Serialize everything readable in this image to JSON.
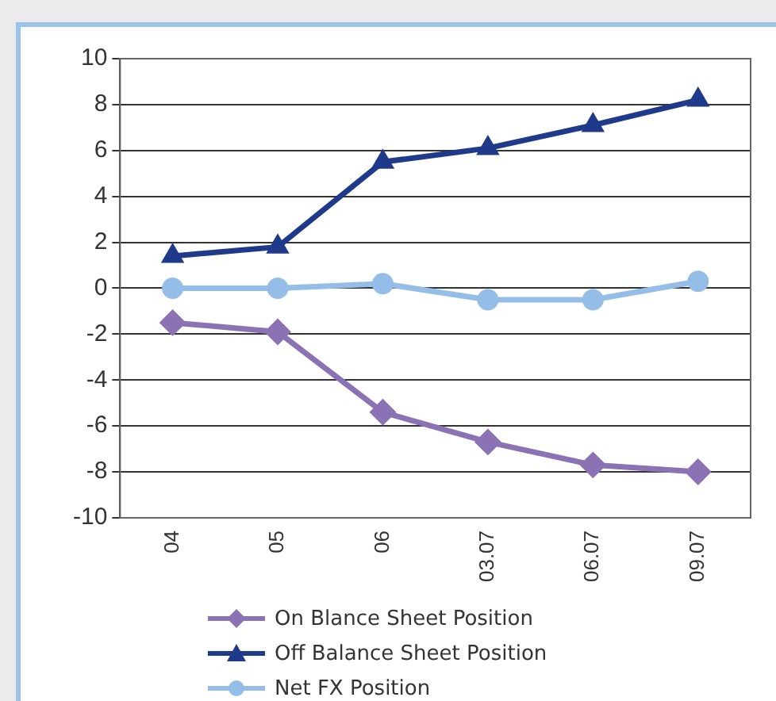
{
  "chart_data": {
    "type": "line",
    "categories": [
      "04",
      "05",
      "06",
      "03.07",
      "06.07",
      "09.07"
    ],
    "series": [
      {
        "name": "On Blance Sheet Position",
        "color": "#8a72b4",
        "marker": "diamond",
        "values": [
          -1.5,
          -1.9,
          -5.4,
          -6.7,
          -7.7,
          -8.0
        ]
      },
      {
        "name": "Off Balance Sheet Position",
        "color": "#1f3a8a",
        "marker": "triangle",
        "values": [
          1.4,
          1.8,
          5.5,
          6.1,
          7.1,
          8.2
        ]
      },
      {
        "name": "Net FX Position",
        "color": "#94bde8",
        "marker": "circle",
        "values": [
          0.0,
          0.0,
          0.2,
          -0.5,
          -0.5,
          0.3
        ]
      }
    ],
    "ylim": [
      -10,
      10
    ],
    "yticks": [
      -10,
      -8,
      -6,
      -4,
      -2,
      0,
      2,
      4,
      6,
      8,
      10
    ],
    "grid": "y",
    "legend": "bottom"
  }
}
